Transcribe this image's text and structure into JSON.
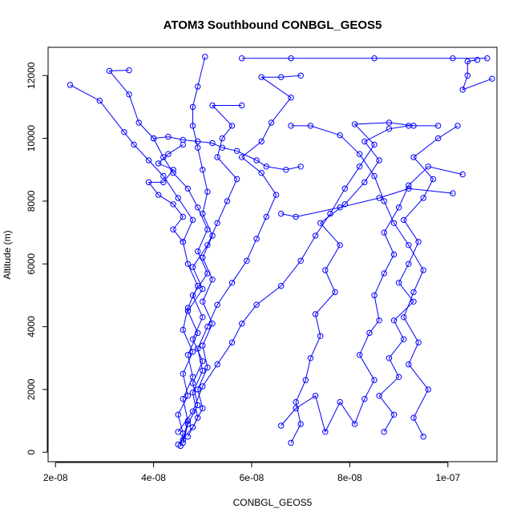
{
  "chart_data": {
    "type": "scatter",
    "title": "ATOM3 Southbound CONBGL_GEOS5",
    "xlabel": "CONBGL_GEOS5",
    "ylabel": "Altitude (m)",
    "xlim": [
      1.85e-08,
      1.1e-07
    ],
    "ylim": [
      -300,
      12900
    ],
    "xticks": [
      2e-08,
      4e-08,
      6e-08,
      8e-08,
      1e-07
    ],
    "xtick_labels": [
      "2e-08",
      "4e-08",
      "6e-08",
      "8e-08",
      "1e-07"
    ],
    "yticks": [
      0,
      2000,
      4000,
      6000,
      8000,
      10000,
      12000
    ],
    "ytick_labels": [
      "0",
      "2000",
      "4000",
      "6000",
      "8000",
      "10000",
      "12000"
    ],
    "grid": false,
    "color": "#0000ff",
    "line_style": "points connected by lines",
    "series": [
      {
        "points": [
          [
            4.55e-08,
            200
          ],
          [
            4.6e-08,
            600
          ],
          [
            4.5e-08,
            1200
          ],
          [
            4.7e-08,
            1800
          ],
          [
            4.6e-08,
            2500
          ],
          [
            4.8e-08,
            3200
          ],
          [
            4.6e-08,
            3900
          ],
          [
            4.7e-08,
            4600
          ],
          [
            4.9e-08,
            5300
          ],
          [
            4.7e-08,
            6000
          ],
          [
            4.6e-08,
            6700
          ],
          [
            4.8e-08,
            7400
          ],
          [
            4.5e-08,
            8100
          ],
          [
            4.2e-08,
            8800
          ],
          [
            3.9e-08,
            9300
          ],
          [
            3.6e-08,
            9800
          ],
          [
            3.4e-08,
            10200
          ],
          [
            2.9e-08,
            11200
          ],
          [
            2.3e-08,
            11700
          ]
        ]
      },
      {
        "points": [
          [
            4.6e-08,
            300
          ],
          [
            4.7e-08,
            900
          ],
          [
            4.9e-08,
            1500
          ],
          [
            4.8e-08,
            2200
          ],
          [
            5e-08,
            2900
          ],
          [
            4.8e-08,
            3600
          ],
          [
            5e-08,
            4300
          ],
          [
            4.8e-08,
            5000
          ],
          [
            5.1e-08,
            5700
          ],
          [
            4.9e-08,
            6400
          ],
          [
            5.1e-08,
            7100
          ],
          [
            4.9e-08,
            7800
          ],
          [
            4.7e-08,
            8400
          ],
          [
            4.4e-08,
            8900
          ],
          [
            4.2e-08,
            9400
          ],
          [
            4e-08,
            10000
          ],
          [
            3.7e-08,
            10500
          ],
          [
            3.5e-08,
            11400
          ],
          [
            3.1e-08,
            12150
          ],
          [
            3.5e-08,
            12170
          ]
        ]
      },
      {
        "points": [
          [
            4.5e-08,
            250
          ],
          [
            4.8e-08,
            800
          ],
          [
            5e-08,
            1400
          ],
          [
            4.9e-08,
            2000
          ],
          [
            5.1e-08,
            2700
          ],
          [
            5e-08,
            3400
          ],
          [
            5.2e-08,
            4100
          ],
          [
            5e-08,
            4800
          ],
          [
            5.2e-08,
            5500
          ],
          [
            5e-08,
            6200
          ],
          [
            5.2e-08,
            6900
          ],
          [
            5e-08,
            7600
          ],
          [
            5.1e-08,
            8300
          ],
          [
            5e-08,
            9000
          ],
          [
            4.9e-08,
            9700
          ],
          [
            4.8e-08,
            10400
          ],
          [
            4.8e-08,
            11000
          ],
          [
            4.9e-08,
            11650
          ],
          [
            5.05e-08,
            12600
          ]
        ]
      },
      {
        "points": [
          [
            4.6e-08,
            400
          ],
          [
            4.7e-08,
            1000
          ],
          [
            4.6e-08,
            1700
          ],
          [
            4.8e-08,
            2400
          ],
          [
            4.7e-08,
            3100
          ],
          [
            4.9e-08,
            3800
          ],
          [
            4.7e-08,
            4500
          ],
          [
            5e-08,
            5200
          ],
          [
            4.8e-08,
            5900
          ],
          [
            5.1e-08,
            6600
          ],
          [
            5.3e-08,
            7300
          ],
          [
            5.5e-08,
            8000
          ],
          [
            5.7e-08,
            8700
          ],
          [
            5.3e-08,
            9400
          ],
          [
            5.4e-08,
            10000
          ],
          [
            5.6e-08,
            10400
          ],
          [
            5.2e-08,
            11050
          ],
          [
            5.8e-08,
            11050
          ]
        ]
      },
      {
        "points": [
          [
            4.7e-08,
            500
          ],
          [
            4.9e-08,
            1100
          ],
          [
            4.8e-08,
            1900
          ],
          [
            5e-08,
            2600
          ],
          [
            4.9e-08,
            3300
          ],
          [
            5.1e-08,
            4000
          ],
          [
            5.3e-08,
            4700
          ],
          [
            5.6e-08,
            5400
          ],
          [
            5.9e-08,
            6100
          ],
          [
            6.1e-08,
            6800
          ],
          [
            6.3e-08,
            7500
          ],
          [
            6.5e-08,
            8200
          ],
          [
            6.2e-08,
            8900
          ],
          [
            5.8e-08,
            9400
          ],
          [
            6.2e-08,
            9900
          ],
          [
            6.4e-08,
            10500
          ],
          [
            6.8e-08,
            11300
          ],
          [
            6.2e-08,
            11950
          ],
          [
            6.6e-08,
            11950
          ],
          [
            7e-08,
            12000
          ]
        ]
      },
      {
        "points": [
          [
            4.5e-08,
            650
          ],
          [
            4.8e-08,
            1300
          ],
          [
            5e-08,
            2100
          ],
          [
            5.3e-08,
            2800
          ],
          [
            5.6e-08,
            3500
          ],
          [
            5.8e-08,
            4100
          ],
          [
            6.1e-08,
            4700
          ],
          [
            6.6e-08,
            5300
          ],
          [
            7e-08,
            6100
          ],
          [
            7.3e-08,
            6900
          ],
          [
            7.6e-08,
            7600
          ],
          [
            7.9e-08,
            8400
          ],
          [
            8.2e-08,
            9100
          ],
          [
            8.5e-08,
            9800
          ],
          [
            8.1e-08,
            10450
          ],
          [
            8.8e-08,
            10500
          ],
          [
            9.3e-08,
            10400
          ]
        ]
      },
      {
        "points": [
          [
            6.8e-08,
            300
          ],
          [
            7e-08,
            900
          ],
          [
            6.9e-08,
            1600
          ],
          [
            7.1e-08,
            2300
          ],
          [
            7.2e-08,
            3000
          ],
          [
            7.4e-08,
            3700
          ],
          [
            7.3e-08,
            4400
          ],
          [
            7.7e-08,
            5100
          ],
          [
            7.5e-08,
            5800
          ],
          [
            7.8e-08,
            6600
          ],
          [
            7.4e-08,
            7300
          ],
          [
            7.9e-08,
            7900
          ],
          [
            8.3e-08,
            8600
          ],
          [
            8.6e-08,
            9300
          ],
          [
            8.3e-08,
            9900
          ],
          [
            8.8e-08,
            10300
          ],
          [
            9.2e-08,
            10400
          ],
          [
            9.8e-08,
            10400
          ]
        ]
      },
      {
        "points": [
          [
            6.6e-08,
            850
          ],
          [
            6.9e-08,
            1400
          ],
          [
            7.3e-08,
            1800
          ],
          [
            7.5e-08,
            650
          ],
          [
            7.8e-08,
            1600
          ],
          [
            8.1e-08,
            900
          ],
          [
            8.3e-08,
            1700
          ],
          [
            8.5e-08,
            2300
          ],
          [
            8.2e-08,
            3100
          ],
          [
            8.4e-08,
            3800
          ],
          [
            8.6e-08,
            4200
          ],
          [
            8.5e-08,
            5000
          ],
          [
            8.7e-08,
            5700
          ],
          [
            8.9e-08,
            6300
          ],
          [
            8.7e-08,
            7000
          ],
          [
            9e-08,
            7800
          ],
          [
            9.2e-08,
            8500
          ],
          [
            9.6e-08,
            9100
          ],
          [
            1.03e-07,
            8850
          ]
        ]
      },
      {
        "points": [
          [
            8.7e-08,
            650
          ],
          [
            8.9e-08,
            1200
          ],
          [
            8.6e-08,
            1800
          ],
          [
            9e-08,
            2400
          ],
          [
            8.8e-08,
            3000
          ],
          [
            9.1e-08,
            3600
          ],
          [
            8.9e-08,
            4200
          ],
          [
            9.3e-08,
            4800
          ],
          [
            9e-08,
            5400
          ],
          [
            9.2e-08,
            6000
          ],
          [
            9.4e-08,
            6700
          ],
          [
            9.1e-08,
            7400
          ],
          [
            9.5e-08,
            8100
          ],
          [
            9.7e-08,
            8700
          ],
          [
            9.3e-08,
            9400
          ],
          [
            9.8e-08,
            10000
          ],
          [
            1.02e-07,
            10400
          ]
        ]
      },
      {
        "points": [
          [
            9.5e-08,
            500
          ],
          [
            9.3e-08,
            1100
          ],
          [
            9.6e-08,
            2000
          ],
          [
            9.2e-08,
            2800
          ],
          [
            9.4e-08,
            3500
          ],
          [
            9.1e-08,
            4300
          ],
          [
            9.3e-08,
            5100
          ],
          [
            9.5e-08,
            5800
          ],
          [
            9.2e-08,
            6600
          ],
          [
            8.9e-08,
            7300
          ],
          [
            8.7e-08,
            8000
          ],
          [
            8.5e-08,
            8800
          ],
          [
            8.2e-08,
            9500
          ],
          [
            7.8e-08,
            10100
          ],
          [
            7.2e-08,
            10400
          ],
          [
            6.8e-08,
            10400
          ]
        ]
      },
      {
        "points": [
          [
            5.8e-08,
            12550
          ],
          [
            6.8e-08,
            12550
          ],
          [
            8.5e-08,
            12550
          ],
          [
            1.01e-07,
            12550
          ],
          [
            1.08e-07,
            12550
          ]
        ]
      },
      {
        "points": [
          [
            1.09e-07,
            11900
          ],
          [
            1.03e-07,
            11550
          ],
          [
            1.04e-07,
            12000
          ],
          [
            1.04e-07,
            12450
          ],
          [
            1.06e-07,
            12500
          ]
        ]
      },
      {
        "points": [
          [
            1.01e-07,
            8250
          ],
          [
            9.2e-08,
            8400
          ],
          [
            8.6e-08,
            8100
          ],
          [
            7.8e-08,
            7800
          ],
          [
            6.9e-08,
            7500
          ],
          [
            6.6e-08,
            7600
          ]
        ]
      },
      {
        "points": [
          [
            4.6e-08,
            9800
          ],
          [
            4.3e-08,
            9500
          ],
          [
            4.1e-08,
            9200
          ],
          [
            4.4e-08,
            9000
          ],
          [
            4.2e-08,
            8600
          ],
          [
            3.9e-08,
            8600
          ],
          [
            4.1e-08,
            8200
          ],
          [
            4.4e-08,
            7900
          ],
          [
            4.6e-08,
            7500
          ],
          [
            4.4e-08,
            7100
          ],
          [
            4.6e-08,
            6700
          ]
        ]
      },
      {
        "points": [
          [
            4e-08,
            10000
          ],
          [
            4.3e-08,
            10050
          ],
          [
            4.6e-08,
            9950
          ],
          [
            4.9e-08,
            9900
          ],
          [
            5.2e-08,
            9850
          ],
          [
            5.4e-08,
            9700
          ],
          [
            5.7e-08,
            9600
          ],
          [
            6.1e-08,
            9300
          ],
          [
            6.3e-08,
            9100
          ],
          [
            6.7e-08,
            9000
          ],
          [
            7e-08,
            9100
          ]
        ]
      }
    ]
  }
}
